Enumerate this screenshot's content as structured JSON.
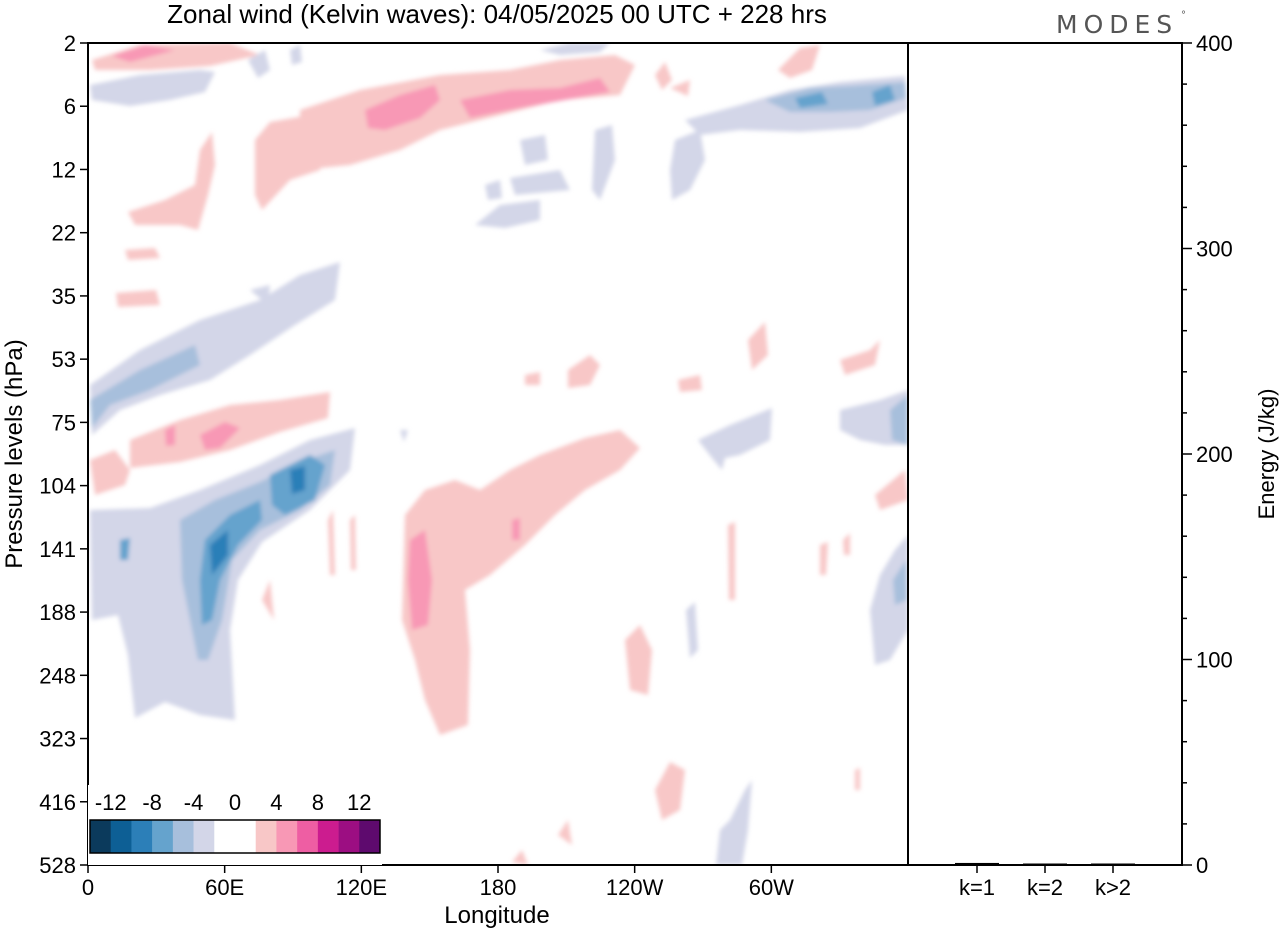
{
  "title": "Zonal wind (Kelvin waves):  04/05/2025  00 UTC  + 228 hrs",
  "logo": {
    "text": "MODES",
    "mark": "°"
  },
  "chart_data": [
    {
      "type": "heatmap",
      "xlabel": "Longitude",
      "ylabel": "Pressure levels (hPa)",
      "x_ticks": [
        "0",
        "60E",
        "120E",
        "180",
        "120W",
        "60W"
      ],
      "x_tick_values": [
        0,
        60,
        120,
        180,
        240,
        300
      ],
      "xlim": [
        0,
        360
      ],
      "y_ticks": [
        "2",
        "6",
        "12",
        "22",
        "35",
        "53",
        "75",
        "104",
        "141",
        "188",
        "248",
        "323",
        "416",
        "528"
      ],
      "y_axis": "levels (ordinal)",
      "colorbar": {
        "labels": [
          "-12",
          "-8",
          "-4",
          "0",
          "4",
          "8",
          "12"
        ],
        "label_values": [
          -12,
          -8,
          -4,
          0,
          4,
          8,
          12
        ],
        "range": [
          -14,
          14
        ],
        "colors": [
          "#0b3a5c",
          "#0d5f95",
          "#2c7fb8",
          "#65a3cd",
          "#a7bfdc",
          "#d3d6e8",
          "#ffffff",
          "#ffffff",
          "#f8c7c7",
          "#f898b5",
          "#ee5ea3",
          "#cc1c8f",
          "#9c0e82",
          "#5e0a6e"
        ]
      },
      "features": [
        {
          "lon": [
            10,
            100
          ],
          "level": [
            0,
            0.5
          ],
          "u": 4
        },
        {
          "lon": [
            0,
            58
          ],
          "level": [
            0.7,
            1.0
          ],
          "u": -4
        },
        {
          "lon": [
            60,
            240
          ],
          "level": [
            0.4,
            1.4
          ],
          "u": 8
        },
        {
          "lon": [
            235,
            360
          ],
          "level": [
            0.7,
            1.4
          ],
          "u": -8
        },
        {
          "lon": [
            20,
            145
          ],
          "level": [
            1.2,
            3.0
          ],
          "u": 4
        },
        {
          "lon": [
            0,
            110
          ],
          "level": [
            4.0,
            6.2
          ],
          "u": -8
        },
        {
          "lon": [
            0,
            105
          ],
          "level": [
            5.5,
            7.2
          ],
          "u": 6
        },
        {
          "lon": [
            0,
            120
          ],
          "level": [
            6.6,
            10.9
          ],
          "u": -12
        },
        {
          "lon": [
            140,
            240
          ],
          "level": [
            7.0,
            11.5
          ],
          "u": 6
        },
        {
          "lon": [
            270,
            300
          ],
          "level": [
            6.5,
            7.3
          ],
          "u": -4
        },
        {
          "lon": [
            315,
            360
          ],
          "level": [
            5.5,
            7.0
          ],
          "u": -6
        },
        {
          "lon": [
            345,
            360
          ],
          "level": [
            8.0,
            9.9
          ],
          "u": -6
        }
      ]
    },
    {
      "type": "bar",
      "categories": [
        "k=1",
        "k=2",
        "k>2"
      ],
      "values": [
        1.0,
        0.4,
        0.4
      ],
      "ylabel": "Energy (J/kg)",
      "ylim": [
        0,
        400
      ],
      "y_ticks": [
        "0",
        "100",
        "200",
        "300",
        "400"
      ],
      "y_tick_values": [
        0,
        100,
        200,
        300,
        400
      ]
    }
  ]
}
